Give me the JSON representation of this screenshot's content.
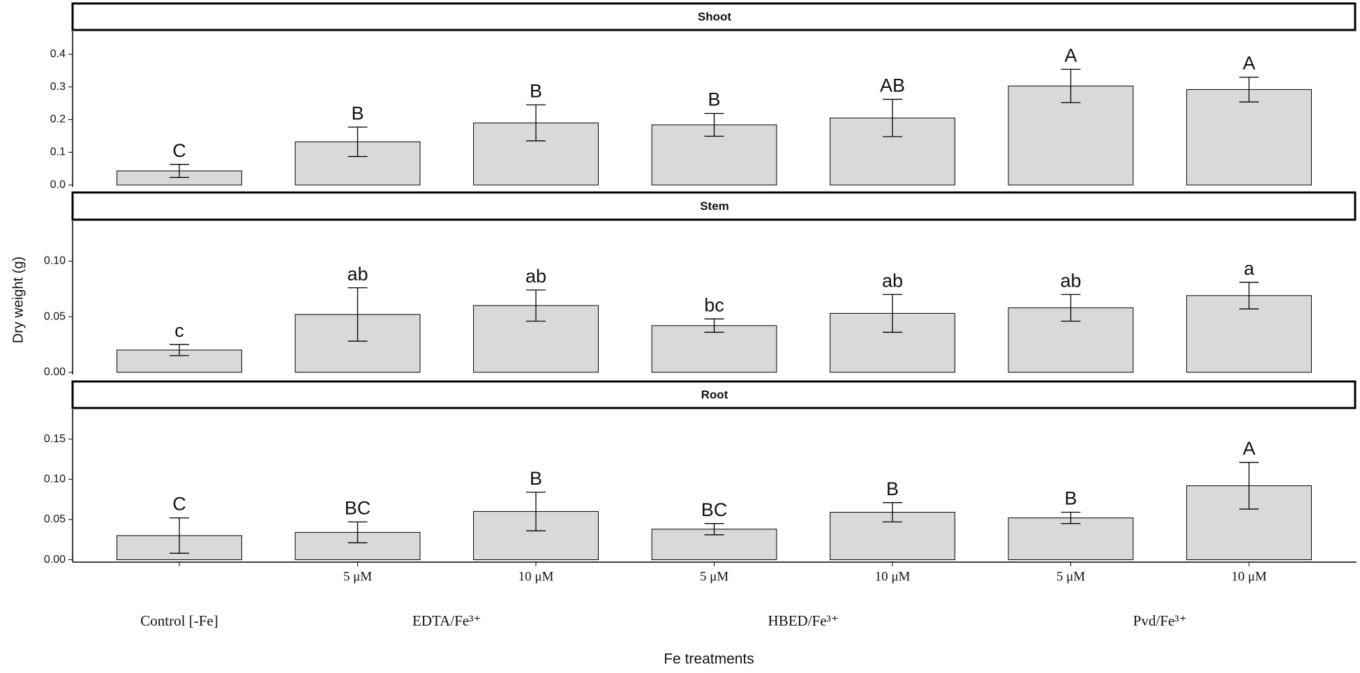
{
  "figure": {
    "y_label": "Dry weight (g)",
    "x_label": "Fe treatments",
    "groups": [
      "Control [-Fe]",
      "EDTA/Fe³⁺",
      "HBED/Fe³⁺",
      "Pvd/Fe³⁺"
    ]
  },
  "chart_data": [
    {
      "type": "bar",
      "title": "Shoot",
      "color": "#d9d9d9",
      "values": [
        0.043,
        0.132,
        0.19,
        0.184,
        0.205,
        0.303,
        0.292
      ],
      "errors": [
        0.02,
        0.045,
        0.055,
        0.035,
        0.057,
        0.051,
        0.038
      ],
      "annotations": [
        "C",
        "B",
        "B",
        "B",
        "AB",
        "A",
        "A"
      ],
      "ylim": [
        -0.006,
        0.47
      ],
      "yticks": [
        {
          "value": 0,
          "label": "0.0"
        },
        0.1,
        0.2,
        0.3,
        0.4
      ]
    },
    {
      "type": "bar",
      "title": "Stem",
      "color": "#d9d9d9",
      "values": [
        0.02,
        0.052,
        0.06,
        0.042,
        0.053,
        0.058,
        0.069
      ],
      "errors": [
        0.005,
        0.024,
        0.014,
        0.006,
        0.017,
        0.012,
        0.012
      ],
      "annotations": [
        "c",
        "ab",
        "ab",
        "bc",
        "ab",
        "ab",
        "a"
      ],
      "ylim": [
        -0.002,
        0.136
      ],
      "yticks": [
        {
          "value": 0,
          "label": "0.00"
        },
        {
          "value": 0.05,
          "label": "0.05"
        },
        {
          "value": 0.1,
          "label": "0.10"
        }
      ]
    },
    {
      "type": "bar",
      "title": "Root",
      "color": "#d9d9d9",
      "categories": [
        null,
        "5 μM",
        "10 μM",
        "5 μM",
        "10 μM",
        "5 μM",
        "10 μM"
      ],
      "values": [
        0.03,
        0.034,
        0.06,
        0.038,
        0.059,
        0.052,
        0.092
      ],
      "errors": [
        0.022,
        0.013,
        0.024,
        0.007,
        0.012,
        0.007,
        0.029
      ],
      "annotations": [
        "C",
        "BC",
        "B",
        "BC",
        "B",
        "B",
        "A"
      ],
      "ylim": [
        -0.003,
        0.187
      ],
      "yticks": [
        {
          "value": 0,
          "label": "0.00"
        },
        {
          "value": 0.05,
          "label": "0.05"
        },
        {
          "value": 0.1,
          "label": "0.10"
        },
        {
          "value": 0.15,
          "label": "0.15"
        }
      ]
    }
  ]
}
